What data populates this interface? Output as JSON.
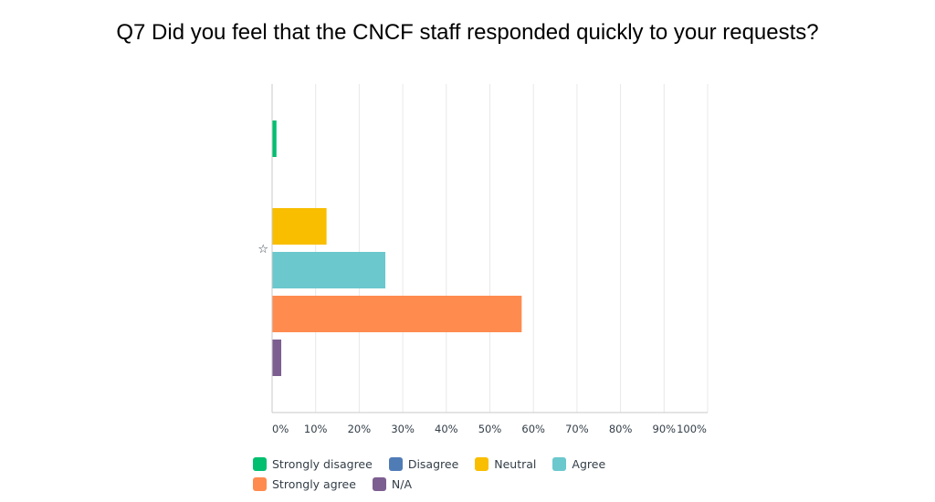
{
  "chart_data": {
    "type": "bar",
    "orientation": "horizontal",
    "title": "Q7 Did you feel that the CNCF staff responded quickly to your requests?",
    "categories": [
      "☆"
    ],
    "series": [
      {
        "name": "Strongly disagree",
        "color": "#00bf6f",
        "values": [
          1.0
        ]
      },
      {
        "name": "Disagree",
        "color": "#507cb6",
        "values": [
          0.0
        ]
      },
      {
        "name": "Neutral",
        "color": "#f9be00",
        "values": [
          12.5
        ]
      },
      {
        "name": "Agree",
        "color": "#6bc8cd",
        "values": [
          26.0
        ]
      },
      {
        "name": "Strongly agree",
        "color": "#ff8b4f",
        "values": [
          57.3
        ]
      },
      {
        "name": "N/A",
        "color": "#7d5e90",
        "values": [
          2.1
        ]
      }
    ],
    "x_ticks": [
      "0%",
      "10%",
      "20%",
      "30%",
      "40%",
      "50%",
      "60%",
      "70%",
      "80%",
      "90%",
      "100%"
    ],
    "xlim": [
      0,
      100
    ],
    "xlabel": "",
    "ylabel": "",
    "grid": true,
    "legend_position": "bottom"
  }
}
